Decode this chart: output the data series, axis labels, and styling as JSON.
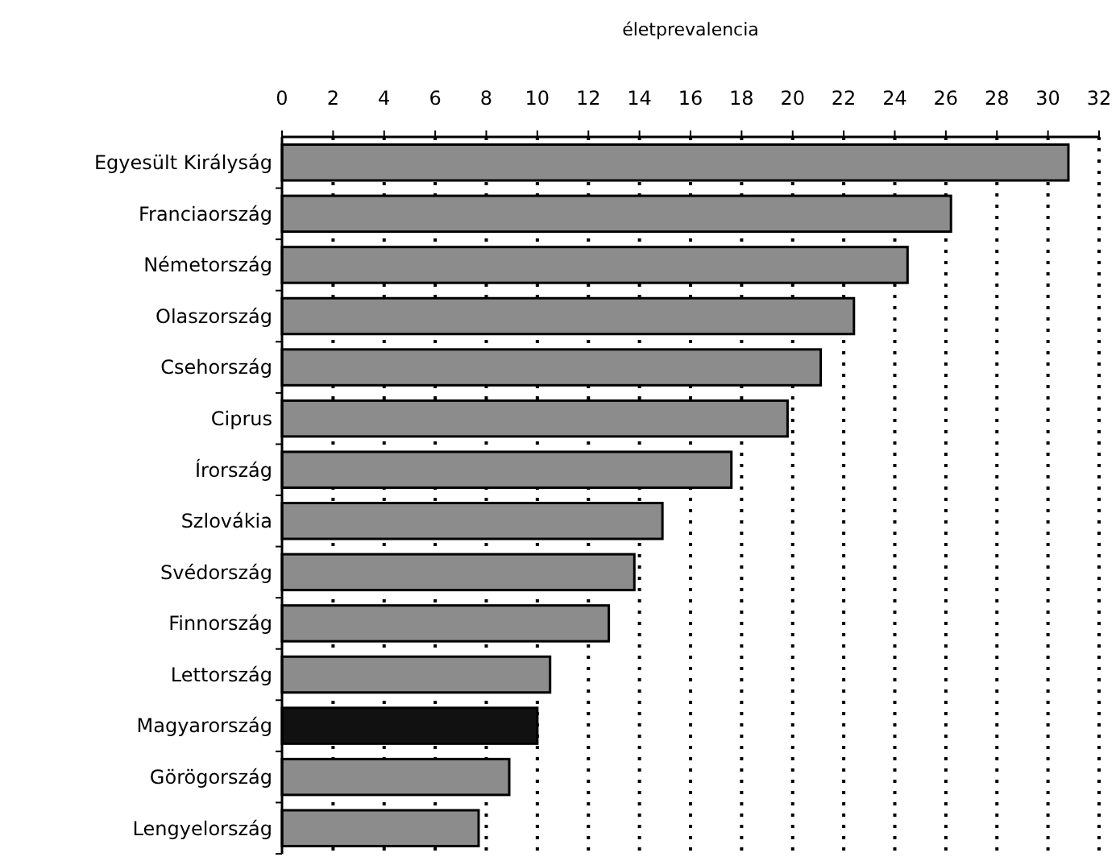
{
  "chart_data": {
    "type": "bar",
    "orientation": "horizontal",
    "xlabel": "életprevalencia",
    "categories": [
      "Egyesült Királyság",
      "Franciaország",
      "Németország",
      "Olaszország",
      "Csehország",
      "Ciprus",
      "Írország",
      "Szlovákia",
      "Svédország",
      "Finnország",
      "Lettország",
      "Magyarország",
      "Görögország",
      "Lengyelország"
    ],
    "values": [
      30.8,
      26.2,
      24.5,
      22.4,
      21.1,
      19.8,
      17.6,
      14.9,
      13.8,
      12.8,
      10.5,
      10.0,
      8.9,
      7.7
    ],
    "colors": [
      "#8c8c8c",
      "#8c8c8c",
      "#8c8c8c",
      "#8c8c8c",
      "#8c8c8c",
      "#8c8c8c",
      "#8c8c8c",
      "#8c8c8c",
      "#8c8c8c",
      "#8c8c8c",
      "#8c8c8c",
      "#111111",
      "#8c8c8c",
      "#8c8c8c"
    ],
    "xlim": [
      0,
      32
    ],
    "xticks": [
      0,
      2,
      4,
      6,
      8,
      10,
      12,
      14,
      16,
      18,
      20,
      22,
      24,
      26,
      28,
      30,
      32
    ],
    "grid": "x"
  }
}
